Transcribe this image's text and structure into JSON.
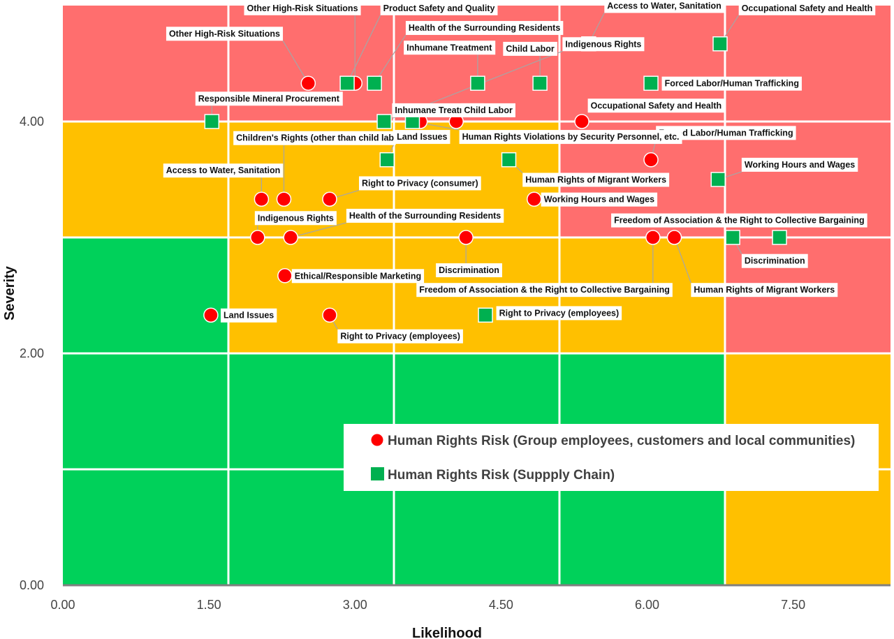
{
  "chart_data": {
    "type": "scatter",
    "xlabel": "Likelihood",
    "ylabel": "Severity",
    "xlim": [
      0,
      8.5
    ],
    "ylim": [
      0,
      5
    ],
    "x_ticks": [
      "0.00",
      "1.50",
      "3.00",
      "4.50",
      "6.00",
      "7.50"
    ],
    "y_ticks": [
      "0.00",
      "2.00",
      "4.00"
    ],
    "x_tick_values": [
      0,
      1.5,
      3,
      4.5,
      6,
      7.5
    ],
    "y_tick_values": [
      0,
      2,
      4
    ],
    "zone_x_bounds": [
      0,
      1.7,
      3.4,
      5.1,
      6.8,
      8.5
    ],
    "zone_y_bounds": [
      0,
      1,
      2,
      3,
      4,
      5
    ],
    "zone_colors": {
      "low": "#00d15a",
      "medium": "#ffc000",
      "high": "#ff6e6e"
    },
    "zone_levels": [
      [
        "low",
        "low",
        "low",
        "low",
        "medium"
      ],
      [
        "low",
        "low",
        "low",
        "low",
        "medium"
      ],
      [
        "low",
        "medium",
        "medium",
        "medium",
        "high"
      ],
      [
        "medium",
        "medium",
        "medium",
        "high",
        "high"
      ],
      [
        "high",
        "high",
        "high",
        "high",
        "high"
      ]
    ],
    "legend": [
      {
        "name": "Human Rights Risk (Group employees, customers and local communities)",
        "marker": "circle",
        "color": "#ff0000"
      },
      {
        "name": "Human Rights Risk (Suppply Chain)",
        "marker": "square",
        "color": "#00b050"
      }
    ],
    "series": [
      {
        "name": "Human Rights Risk (Group employees, customers and local communities)",
        "marker": "circle",
        "color": "#ff0000",
        "points": [
          {
            "x": 2.52,
            "y": 4.33,
            "label": "Other High-Risk Situations",
            "lx": 1.09,
            "ly": 4.76,
            "anchor": "start"
          },
          {
            "x": 3.0,
            "y": 4.33,
            "label": "Other High-Risk Situations",
            "lx": 1.89,
            "ly": 4.98,
            "anchor": "start"
          },
          {
            "x": 3.67,
            "y": 4.0,
            "label": "Inhumane Treatment",
            "lx": 3.41,
            "ly": 4.1,
            "anchor": "start"
          },
          {
            "x": 4.04,
            "y": 4.0,
            "label": "Child Labor",
            "lx": 4.12,
            "ly": 4.1,
            "anchor": "start"
          },
          {
            "x": 5.33,
            "y": 4.0,
            "label": "Occupational Safety and Health",
            "lx": 5.42,
            "ly": 4.14,
            "anchor": "start"
          },
          {
            "x": 6.04,
            "y": 3.67,
            "label": "Forced Labor/Human Trafficking",
            "lx": 6.12,
            "ly": 3.9,
            "anchor": "start",
            "small": true
          },
          {
            "x": 2.04,
            "y": 3.33,
            "label": "Access to Water, Sanitation",
            "lx": 1.06,
            "ly": 3.58,
            "anchor": "start"
          },
          {
            "x": 2.27,
            "y": 3.33,
            "label": "Children's Rights (other than child labor)",
            "lx": 1.78,
            "ly": 3.86,
            "anchor": "start",
            "clip_w": 1.61
          },
          {
            "x": 2.74,
            "y": 3.33,
            "label": "Right to Privacy (consumer)",
            "lx": 3.07,
            "ly": 3.47,
            "anchor": "start"
          },
          {
            "x": 4.84,
            "y": 3.33,
            "label": "Working Hours and Wages",
            "lx": 4.94,
            "ly": 3.33,
            "anchor": "start"
          },
          {
            "x": 2.0,
            "y": 3.0,
            "label": "Indigenous Rights",
            "lx": 2.0,
            "ly": 3.17,
            "anchor": "start"
          },
          {
            "x": 2.34,
            "y": 3.0,
            "label": "Health of the Surrounding Residents",
            "lx": 2.94,
            "ly": 3.19,
            "anchor": "start"
          },
          {
            "x": 4.14,
            "y": 3.0,
            "label": "Discrimination",
            "lx": 3.86,
            "ly": 2.72,
            "anchor": "start"
          },
          {
            "x": 6.06,
            "y": 3.0,
            "label": "Freedom of Association & the Right to Collective Bargaining",
            "lx": 3.66,
            "ly": 2.55,
            "anchor": "start"
          },
          {
            "x": 6.28,
            "y": 3.0,
            "label": "Human Rights of Migrant Workers",
            "lx": 6.48,
            "ly": 2.55,
            "anchor": "start"
          },
          {
            "x": 2.28,
            "y": 2.67,
            "label": "Ethical/Responsible Marketing",
            "lx": 2.38,
            "ly": 2.67,
            "anchor": "start"
          },
          {
            "x": 1.52,
            "y": 2.33,
            "label": "Land Issues",
            "lx": 1.65,
            "ly": 2.33,
            "anchor": "start"
          },
          {
            "x": 2.74,
            "y": 2.33,
            "label": "Right to Privacy (employees)",
            "lx": 2.85,
            "ly": 2.15,
            "anchor": "start"
          }
        ]
      },
      {
        "name": "Human Rights Risk (Suppply Chain)",
        "marker": "square",
        "color": "#00b050",
        "points": [
          {
            "x": 5.4,
            "y": 4.67,
            "label": "Access to Water, Sanitation",
            "lx": 5.59,
            "ly": 5.0,
            "anchor": "start"
          },
          {
            "x": 6.75,
            "y": 4.67,
            "label": "Occupational Safety and Health",
            "lx": 6.97,
            "ly": 4.98,
            "anchor": "start"
          },
          {
            "x": 2.92,
            "y": 4.33,
            "label": "Product Safety and Quality",
            "lx": 3.29,
            "ly": 4.98,
            "anchor": "start"
          },
          {
            "x": 3.2,
            "y": 4.33,
            "label": "Health of the Surrounding Residents",
            "lx": 3.55,
            "ly": 4.81,
            "anchor": "start"
          },
          {
            "x": 4.26,
            "y": 4.33,
            "label": "Inhumane Treatment",
            "lx": 3.53,
            "ly": 4.64,
            "anchor": "start"
          },
          {
            "x": 4.9,
            "y": 4.33,
            "label": "Child Labor",
            "lx": 4.55,
            "ly": 4.63,
            "anchor": "start"
          },
          {
            "x": 6.04,
            "y": 4.33,
            "label": "Forced Labor/Human Trafficking",
            "lx": 6.18,
            "ly": 4.33,
            "anchor": "start"
          },
          {
            "x": 1.53,
            "y": 4.0,
            "label": "Responsible Mineral Procurement",
            "lx": 1.39,
            "ly": 4.2,
            "anchor": "start"
          },
          {
            "x": 3.3,
            "y": 4.0,
            "label": "Indigenous Rights",
            "lx": 5.16,
            "ly": 4.67,
            "anchor": "start"
          },
          {
            "x": 3.59,
            "y": 4.0,
            "label": "Human Rights Violations by Security Personnel, etc.",
            "lx": 4.1,
            "ly": 3.87,
            "anchor": "start"
          },
          {
            "x": 3.33,
            "y": 3.67,
            "label": "Land Issues",
            "lx": 3.43,
            "ly": 3.87,
            "anchor": "start"
          },
          {
            "x": 4.58,
            "y": 3.67,
            "label": "Human Rights of Migrant Workers",
            "lx": 4.75,
            "ly": 3.5,
            "anchor": "start"
          },
          {
            "x": 6.73,
            "y": 3.5,
            "label": "Working Hours and Wages",
            "lx": 7.0,
            "ly": 3.63,
            "anchor": "start"
          },
          {
            "x": 6.88,
            "y": 3.0,
            "label": "Discrimination",
            "lx": 7.0,
            "ly": 2.8,
            "anchor": "start"
          },
          {
            "x": 7.36,
            "y": 3.0,
            "label": "Freedom of Association & the Right to Collective Bargaining",
            "lx": 5.66,
            "ly": 3.15,
            "anchor": "start"
          },
          {
            "x": 4.34,
            "y": 2.33,
            "label": "Right to Privacy (employees)",
            "lx": 4.48,
            "ly": 2.35,
            "anchor": "start"
          }
        ]
      }
    ]
  }
}
